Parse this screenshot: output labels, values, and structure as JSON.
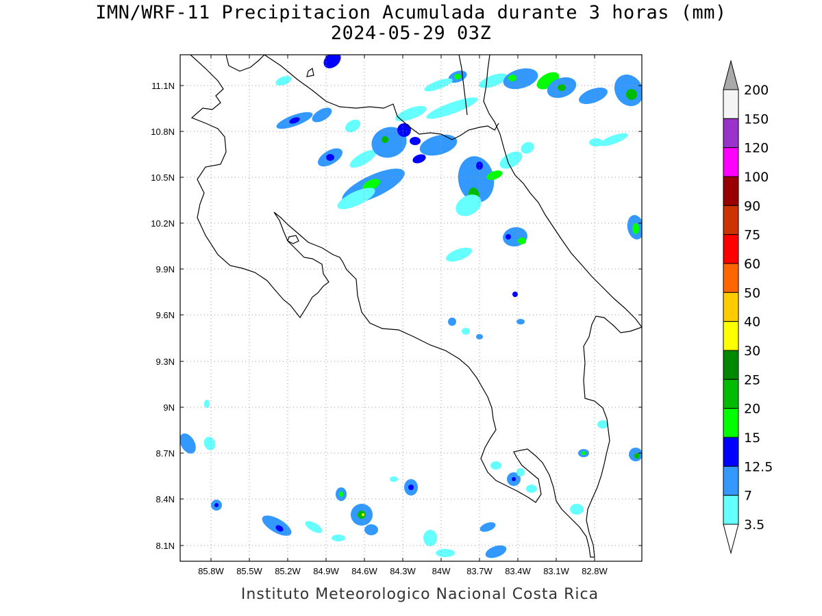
{
  "title": {
    "line1": "IMN/WRF-11 Precipitacion Acumulada durante 3 horas (mm)",
    "line2": "2024-05-29 03Z"
  },
  "footer": "Instituto Meteorologico Nacional Costa Rica",
  "axes": {
    "x_ticks": [
      "85.8W",
      "85.5W",
      "85.2W",
      "84.9W",
      "84.6W",
      "84.3W",
      "84W",
      "83.7W",
      "83.4W",
      "83.1W",
      "82.8W"
    ],
    "y_ticks": [
      "11.1N",
      "10.8N",
      "10.5N",
      "10.2N",
      "9.9N",
      "9.6N",
      "9.3N",
      "9N",
      "8.7N",
      "8.4N",
      "8.1N"
    ],
    "grid": "dotted"
  },
  "colorbar": {
    "labels": [
      "200",
      "150",
      "120",
      "100",
      "90",
      "75",
      "60",
      "50",
      "40",
      "30",
      "25",
      "20",
      "15",
      "12.5",
      "7",
      "3.5"
    ],
    "colors": [
      "#aaaaaa",
      "#f4f4f4",
      "#9933cc",
      "#ff00ff",
      "#990000",
      "#cc3300",
      "#ff0000",
      "#ff6600",
      "#ffcc00",
      "#ffff00",
      "#008800",
      "#00bb00",
      "#00ff00",
      "#0000ff",
      "#3399ff",
      "#66ffff",
      "#ffffff"
    ]
  },
  "precip_colors": {
    "c3_5": "#66ffff",
    "c7": "#3399ff",
    "c12_5": "#0000ff",
    "c15": "#00ff00",
    "c20": "#00bb00",
    "c30": "#ffff00"
  }
}
